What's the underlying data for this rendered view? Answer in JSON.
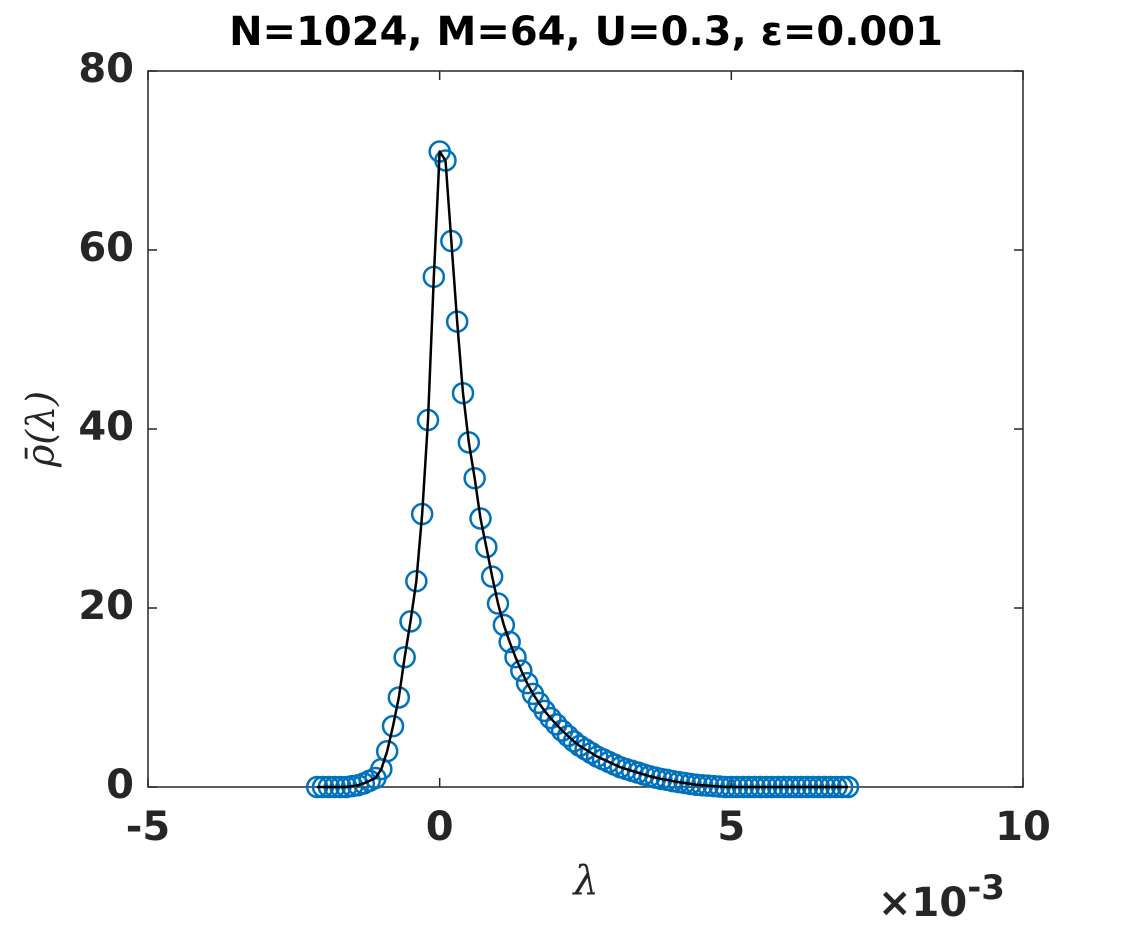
{
  "chart_data": {
    "type": "scatter_line",
    "title": "N=1024, M=64, U=0.3, ε=0.001",
    "xlabel": "λ",
    "ylabel": "ρ̄(λ)",
    "x_multiplier": {
      "base": "×10",
      "exponent": "-3"
    },
    "x": [
      -2.1,
      -2.0,
      -1.9,
      -1.8,
      -1.7,
      -1.6,
      -1.5,
      -1.4,
      -1.3,
      -1.2,
      -1.1,
      -1.0,
      -0.9,
      -0.8,
      -0.7,
      -0.6,
      -0.5,
      -0.4,
      -0.3,
      -0.2,
      -0.1,
      0,
      0.1,
      0.2,
      0.3,
      0.4,
      0.5,
      0.6,
      0.7,
      0.8,
      0.9,
      1.0,
      1.1,
      1.2,
      1.3,
      1.4,
      1.5,
      1.6,
      1.7,
      1.8,
      1.9,
      2.0,
      2.1,
      2.2,
      2.3,
      2.4,
      2.5,
      2.6,
      2.7,
      2.8,
      2.9,
      3.0,
      3.1,
      3.2,
      3.3,
      3.4,
      3.5,
      3.6,
      3.7,
      3.8,
      3.9,
      4.0,
      4.1,
      4.2,
      4.3,
      4.4,
      4.5,
      4.6,
      4.7,
      4.8,
      4.9,
      5.0,
      5.1,
      5.2,
      5.3,
      5.4,
      5.5,
      5.6,
      5.7,
      5.8,
      5.9,
      6.0,
      6.1,
      6.2,
      6.3,
      6.4,
      6.5,
      6.6,
      6.7,
      6.8,
      6.9,
      7.0
    ],
    "series": [
      {
        "style": "marker",
        "color": "#0072bd",
        "values": [
          0,
          0,
          0,
          0,
          0,
          0,
          0.1,
          0.2,
          0.4,
          0.7,
          1.0,
          2.0,
          4.0,
          6.8,
          10,
          14.5,
          18.5,
          23,
          30.5,
          41,
          57,
          71,
          70,
          61,
          52,
          44,
          38.5,
          34.5,
          30,
          26.8,
          23.5,
          20.5,
          18.1,
          16.2,
          14.5,
          13.0,
          11.6,
          10.4,
          9.4,
          8.5,
          7.7,
          7.0,
          6.3,
          5.7,
          5.1,
          4.6,
          4.2,
          3.8,
          3.4,
          3.1,
          2.8,
          2.5,
          2.2,
          2.0,
          1.8,
          1.6,
          1.4,
          1.2,
          1.05,
          0.9,
          0.8,
          0.65,
          0.55,
          0.45,
          0.35,
          0.25,
          0.2,
          0.15,
          0.1,
          0.05,
          0,
          0,
          0,
          0,
          0,
          0,
          0,
          0,
          0,
          0,
          0,
          0,
          0,
          0,
          0,
          0,
          0,
          0,
          0,
          0,
          0,
          0
        ]
      },
      {
        "style": "line",
        "color": "#000000",
        "values": [
          0,
          0,
          0,
          0,
          0,
          0,
          0.1,
          0.2,
          0.4,
          0.7,
          1.0,
          2.0,
          4.0,
          6.8,
          10,
          14.5,
          18.5,
          23,
          30.5,
          41,
          57,
          71,
          70,
          61,
          52,
          44,
          38.5,
          34.5,
          30,
          26.8,
          23.5,
          20.5,
          18.1,
          16.2,
          14.5,
          13.0,
          11.6,
          10.4,
          9.4,
          8.5,
          7.7,
          7.0,
          6.3,
          5.7,
          5.1,
          4.6,
          4.2,
          3.8,
          3.4,
          3.1,
          2.8,
          2.5,
          2.2,
          2.0,
          1.8,
          1.6,
          1.4,
          1.2,
          1.05,
          0.9,
          0.8,
          0.65,
          0.55,
          0.45,
          0.35,
          0.25,
          0.2,
          0.15,
          0.1,
          0.05,
          0,
          0,
          0,
          0,
          0,
          0,
          0,
          0,
          0,
          0,
          0,
          0,
          0,
          0,
          0,
          0,
          0,
          0,
          0,
          0,
          0,
          0
        ]
      }
    ],
    "xlim": [
      -5,
      10
    ],
    "xticks": [
      -5,
      0,
      5,
      10
    ],
    "ylim": [
      0,
      80
    ],
    "yticks": [
      0,
      20,
      40,
      60,
      80
    ],
    "grid": false
  }
}
